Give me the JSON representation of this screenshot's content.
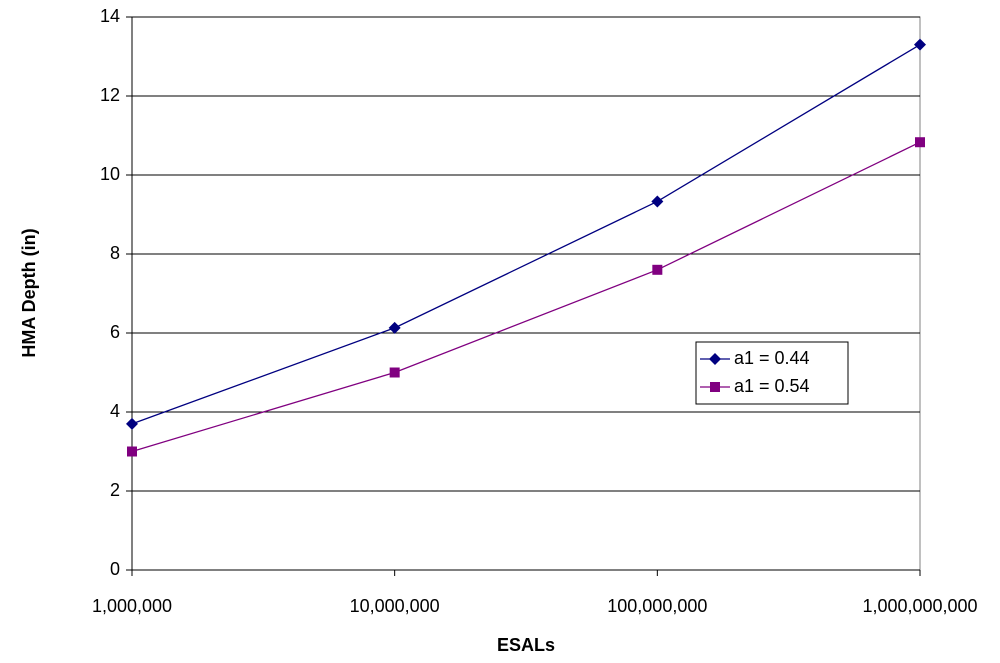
{
  "chart_data": {
    "type": "line",
    "x": [
      {
        "value": 1000000,
        "label": "1,000,000"
      },
      {
        "value": 10000000,
        "label": "10,000,000"
      },
      {
        "value": 100000000,
        "label": "100,000,000"
      },
      {
        "value": 1000000000,
        "label": "1,000,000,000"
      }
    ],
    "series": [
      {
        "name": "a1 = 0.44",
        "color": "#000080",
        "marker": "diamond",
        "values": [
          3.7,
          6.13,
          9.33,
          13.3
        ]
      },
      {
        "name": "a1 = 0.54",
        "color": "#800080",
        "marker": "square",
        "values": [
          3.0,
          5.0,
          7.6,
          10.83
        ]
      }
    ],
    "xlabel": "ESALs",
    "ylabel": "HMA Depth (in)",
    "xlim": [
      1000000,
      1000000000
    ],
    "xscale": "log",
    "xticks": [
      {
        "value": 1000000,
        "label": "1,000,000"
      },
      {
        "value": 10000000,
        "label": "10,000,000"
      },
      {
        "value": 100000000,
        "label": "100,000,000"
      },
      {
        "value": 1000000000,
        "label": "1,000,000,000"
      }
    ],
    "ylim": [
      0,
      14
    ],
    "yticks": [
      0,
      2,
      4,
      6,
      8,
      10,
      12,
      14
    ],
    "grid": true,
    "legend": "center-right"
  }
}
